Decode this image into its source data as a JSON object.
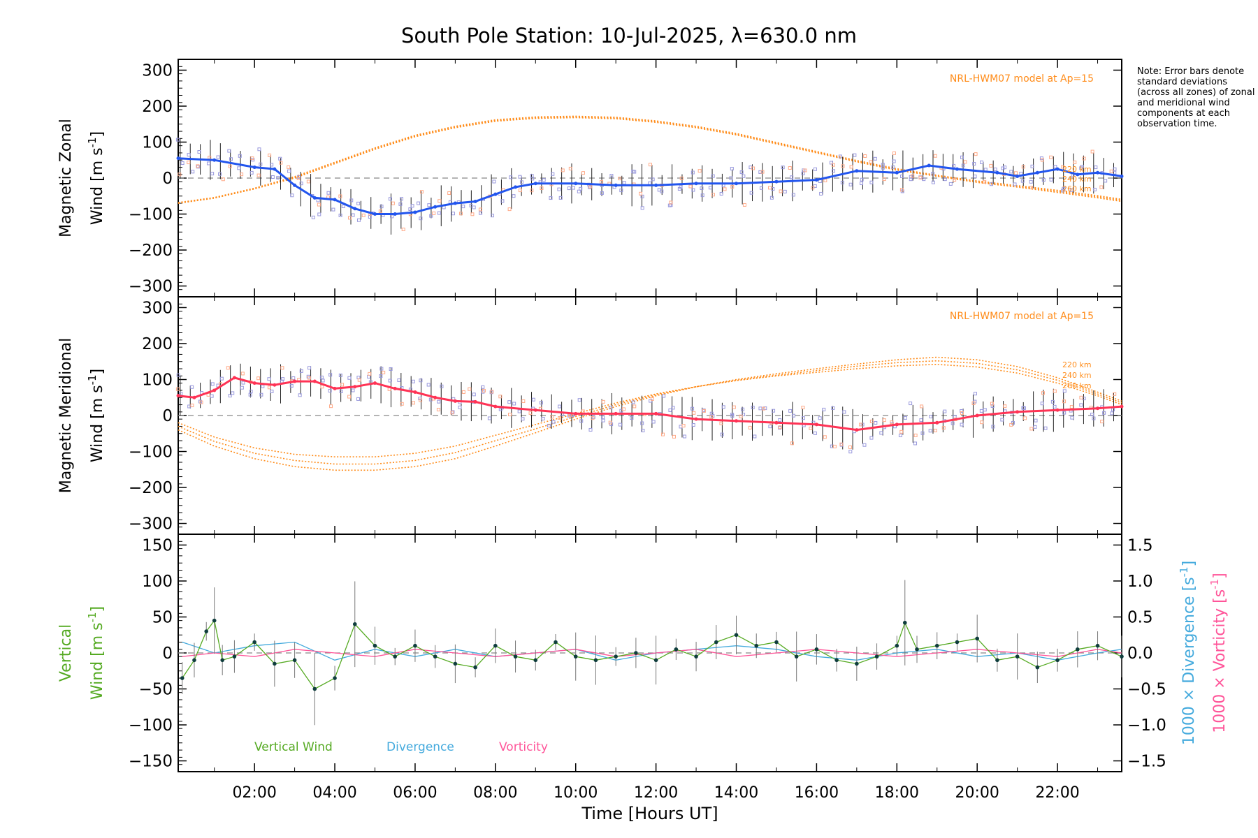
{
  "title": "South Pole Station: 10-Jul-2025, λ=630.0 nm",
  "note": "Note: Error bars denote standard deviations (across all zones) of zonal and meridional wind components at each observation time.",
  "colors": {
    "zonal": "#2255ee",
    "meridional": "#ff3355",
    "model": "#ff8c1a",
    "vertical": "#55aa22",
    "divergence": "#44aadd",
    "vorticity": "#ff5599",
    "scatter": "#9999dd",
    "scatter_alt": "#ffaa88",
    "errorbar": "#222222",
    "zero_line": "#888888"
  },
  "xaxis": {
    "label": "Time [Hours UT]",
    "range": [
      0.1,
      23.6
    ],
    "tick_labels": [
      "02:00",
      "04:00",
      "06:00",
      "08:00",
      "10:00",
      "12:00",
      "14:00",
      "16:00",
      "18:00",
      "20:00",
      "22:00"
    ],
    "tick_values": [
      2,
      4,
      6,
      8,
      10,
      12,
      14,
      16,
      18,
      20,
      22
    ]
  },
  "chart_data": [
    {
      "type": "line",
      "panel": "zonal",
      "ylabel_line1": "Magnetic Zonal",
      "ylabel_line2": "Wind [m s",
      "ylabel_exp": "-1",
      "ylabel_end": "]",
      "ylim": [
        -330,
        330
      ],
      "yticks": [
        -300,
        -200,
        -100,
        0,
        100,
        200,
        300
      ],
      "model_label": "NRL-HWM07 model at Ap=15",
      "altitude_labels": [
        "220 km",
        "240 km",
        "260 km"
      ],
      "series": [
        {
          "name": "Magnetic Zonal Wind",
          "x": [
            0.1,
            1.0,
            2.0,
            2.5,
            3.0,
            3.5,
            4.0,
            4.5,
            5.0,
            5.5,
            6.0,
            6.5,
            7.0,
            7.5,
            8.0,
            8.5,
            9.0,
            10.0,
            11.0,
            12.0,
            13.0,
            14.0,
            15.0,
            16.0,
            17.0,
            18.0,
            18.8,
            19.5,
            20.5,
            21.0,
            21.5,
            22.0,
            22.5,
            23.0,
            23.6
          ],
          "y": [
            55,
            50,
            30,
            25,
            -20,
            -55,
            -60,
            -85,
            -100,
            -100,
            -95,
            -80,
            -70,
            -65,
            -45,
            -25,
            -15,
            -15,
            -20,
            -20,
            -15,
            -15,
            -10,
            -5,
            20,
            15,
            35,
            25,
            15,
            5,
            15,
            25,
            10,
            15,
            5
          ]
        },
        {
          "name": "NRL-HWM07 220 km",
          "x": [
            0.1,
            1,
            2,
            3,
            4,
            5,
            6,
            7,
            8,
            9,
            10,
            11,
            12,
            13,
            14,
            15,
            16,
            17,
            18,
            19,
            20,
            21,
            22,
            23,
            23.6
          ],
          "y": [
            -70,
            -55,
            -30,
            0,
            40,
            80,
            115,
            140,
            158,
            166,
            168,
            165,
            155,
            140,
            120,
            95,
            70,
            45,
            22,
            5,
            -12,
            -25,
            -40,
            -55,
            -65
          ]
        },
        {
          "name": "NRL-HWM07 240 km",
          "x": [
            0.1,
            1,
            2,
            3,
            4,
            5,
            6,
            7,
            8,
            9,
            10,
            11,
            12,
            13,
            14,
            15,
            16,
            17,
            18,
            19,
            20,
            21,
            22,
            23,
            23.6
          ],
          "y": [
            -70,
            -56,
            -30,
            2,
            42,
            82,
            117,
            142,
            160,
            168,
            170,
            167,
            157,
            142,
            122,
            97,
            72,
            47,
            24,
            6,
            -10,
            -23,
            -37,
            -52,
            -62
          ]
        },
        {
          "name": "NRL-HWM07 260 km",
          "x": [
            0.1,
            1,
            2,
            3,
            4,
            5,
            6,
            7,
            8,
            9,
            10,
            11,
            12,
            13,
            14,
            15,
            16,
            17,
            18,
            19,
            20,
            21,
            22,
            23,
            23.6
          ],
          "y": [
            -68,
            -54,
            -28,
            4,
            44,
            84,
            119,
            144,
            162,
            170,
            172,
            169,
            159,
            144,
            124,
            99,
            74,
            49,
            26,
            8,
            -8,
            -21,
            -34,
            -49,
            -59
          ]
        }
      ]
    },
    {
      "type": "line",
      "panel": "meridional",
      "ylabel_line1": "Magnetic Meridional",
      "ylabel_line2": "Wind [m s",
      "ylabel_exp": "-1",
      "ylabel_end": "]",
      "ylim": [
        -330,
        330
      ],
      "yticks": [
        -300,
        -200,
        -100,
        0,
        100,
        200,
        300
      ],
      "model_label": "NRL-HWM07 model at Ap=15",
      "altitude_labels": [
        "220 km",
        "240 km",
        "260 km"
      ],
      "series": [
        {
          "name": "Magnetic Meridional Wind",
          "x": [
            0.1,
            0.5,
            1.0,
            1.5,
            2.0,
            2.5,
            3.0,
            3.5,
            4.0,
            4.5,
            5.0,
            5.5,
            6.0,
            6.5,
            7.0,
            7.5,
            8.0,
            9.0,
            10.0,
            11.0,
            12.0,
            13.0,
            14.0,
            15.0,
            16.0,
            17.0,
            18.0,
            19.0,
            20.0,
            21.0,
            22.0,
            23.0,
            23.6
          ],
          "y": [
            55,
            50,
            70,
            105,
            90,
            85,
            95,
            95,
            75,
            80,
            90,
            75,
            65,
            50,
            40,
            38,
            25,
            15,
            5,
            5,
            5,
            -10,
            -15,
            -20,
            -25,
            -40,
            -25,
            -20,
            0,
            10,
            15,
            20,
            25
          ]
        },
        {
          "name": "NRL-HWM07 220 km",
          "x": [
            0.1,
            1,
            2,
            3,
            4,
            5,
            6,
            7,
            8,
            9,
            10,
            11,
            12,
            13,
            14,
            15,
            16,
            17,
            18,
            19,
            20,
            21,
            22,
            23,
            23.6
          ],
          "y": [
            -20,
            -60,
            -90,
            -108,
            -115,
            -115,
            -105,
            -85,
            -55,
            -25,
            5,
            35,
            60,
            80,
            97,
            110,
            120,
            130,
            138,
            142,
            135,
            118,
            90,
            55,
            30
          ]
        },
        {
          "name": "NRL-HWM07 240 km",
          "x": [
            0.1,
            1,
            2,
            3,
            4,
            5,
            6,
            7,
            8,
            9,
            10,
            11,
            12,
            13,
            14,
            15,
            16,
            17,
            18,
            19,
            20,
            21,
            22,
            23,
            23.6
          ],
          "y": [
            -30,
            -72,
            -105,
            -125,
            -135,
            -135,
            -125,
            -103,
            -70,
            -37,
            -3,
            30,
            58,
            80,
            98,
            112,
            125,
            137,
            147,
            152,
            145,
            127,
            98,
            60,
            35
          ]
        },
        {
          "name": "NRL-HWM07 260 km",
          "x": [
            0.1,
            1,
            2,
            3,
            4,
            5,
            6,
            7,
            8,
            9,
            10,
            11,
            12,
            13,
            14,
            15,
            16,
            17,
            18,
            19,
            20,
            21,
            22,
            23,
            23.6
          ],
          "y": [
            -40,
            -85,
            -120,
            -142,
            -152,
            -152,
            -142,
            -120,
            -85,
            -48,
            -10,
            25,
            55,
            80,
            100,
            116,
            130,
            143,
            155,
            162,
            155,
            136,
            105,
            65,
            40
          ]
        }
      ]
    },
    {
      "type": "line",
      "panel": "vertical",
      "ylabel_line1": "Vertical",
      "ylabel_line2": "Wind [m s",
      "ylabel_exp": "-1",
      "ylabel_end": "]",
      "ylim": [
        -165,
        165
      ],
      "yticks": [
        -150,
        -100,
        -50,
        0,
        50,
        100,
        150
      ],
      "y2label_div_a": "1000 × Divergence [s",
      "y2label_div_exp": "-1",
      "y2label_div_b": "]",
      "y2label_vor_a": "1000 × Vorticity [s",
      "y2label_vor_exp": "-1",
      "y2label_vor_b": "]",
      "y2lim": [
        -1.65,
        1.65
      ],
      "y2ticks": [
        -1.5,
        -1.0,
        -0.5,
        0.0,
        0.5,
        1.0,
        1.5
      ],
      "y2tick_labels": [
        "−1.5",
        "−1.0",
        "−0.5",
        "0.0",
        "0.5",
        "1.0",
        "1.5"
      ],
      "legend": [
        "Vertical Wind",
        "Divergence",
        "Vorticity"
      ],
      "series": [
        {
          "name": "Vertical Wind",
          "x": [
            0.2,
            0.5,
            0.8,
            1.0,
            1.2,
            1.5,
            2.0,
            2.5,
            3.0,
            3.5,
            4.0,
            4.5,
            5.0,
            5.5,
            6.0,
            6.5,
            7.0,
            7.5,
            8.0,
            8.5,
            9.0,
            9.5,
            10.0,
            10.5,
            11.0,
            11.5,
            12.0,
            12.5,
            13.0,
            13.5,
            14.0,
            14.5,
            15.0,
            15.5,
            16.0,
            16.5,
            17.0,
            17.5,
            18.0,
            18.2,
            18.5,
            19.0,
            19.5,
            20.0,
            20.5,
            21.0,
            21.5,
            22.0,
            22.5,
            23.0,
            23.6
          ],
          "y": [
            -35,
            -10,
            30,
            45,
            -10,
            -5,
            15,
            -15,
            -10,
            -50,
            -35,
            40,
            10,
            -5,
            10,
            -5,
            -15,
            -20,
            10,
            -5,
            -10,
            15,
            -5,
            -10,
            -5,
            0,
            -10,
            5,
            -5,
            15,
            25,
            10,
            15,
            -5,
            5,
            -10,
            -15,
            -5,
            10,
            42,
            5,
            10,
            15,
            20,
            -10,
            -5,
            -20,
            -10,
            5,
            10,
            -5
          ]
        },
        {
          "name": "Divergence",
          "x": [
            0.2,
            1,
            2,
            3,
            4,
            5,
            6,
            7,
            8,
            9,
            10,
            11,
            12,
            13,
            14,
            15,
            16,
            17,
            18,
            19,
            20,
            21,
            22,
            23,
            23.6
          ],
          "y": [
            0.15,
            0.0,
            0.1,
            0.15,
            -0.1,
            0.05,
            -0.05,
            0.05,
            -0.05,
            0.0,
            0.05,
            -0.1,
            0.0,
            0.05,
            0.1,
            0.05,
            -0.05,
            -0.1,
            0.0,
            0.05,
            -0.05,
            0.0,
            -0.1,
            0.0,
            0.05
          ]
        },
        {
          "name": "Vorticity",
          "x": [
            0.2,
            1,
            2,
            3,
            4,
            5,
            6,
            7,
            8,
            9,
            10,
            11,
            12,
            13,
            14,
            15,
            16,
            17,
            18,
            19,
            20,
            21,
            22,
            23,
            23.6
          ],
          "y": [
            -0.05,
            0.0,
            -0.05,
            0.05,
            0.0,
            -0.05,
            0.05,
            0.0,
            -0.05,
            0.0,
            0.05,
            -0.05,
            0.0,
            0.05,
            -0.05,
            0.0,
            0.05,
            0.0,
            -0.05,
            0.0,
            0.05,
            0.0,
            -0.05,
            0.05,
            0.0
          ]
        }
      ]
    }
  ]
}
